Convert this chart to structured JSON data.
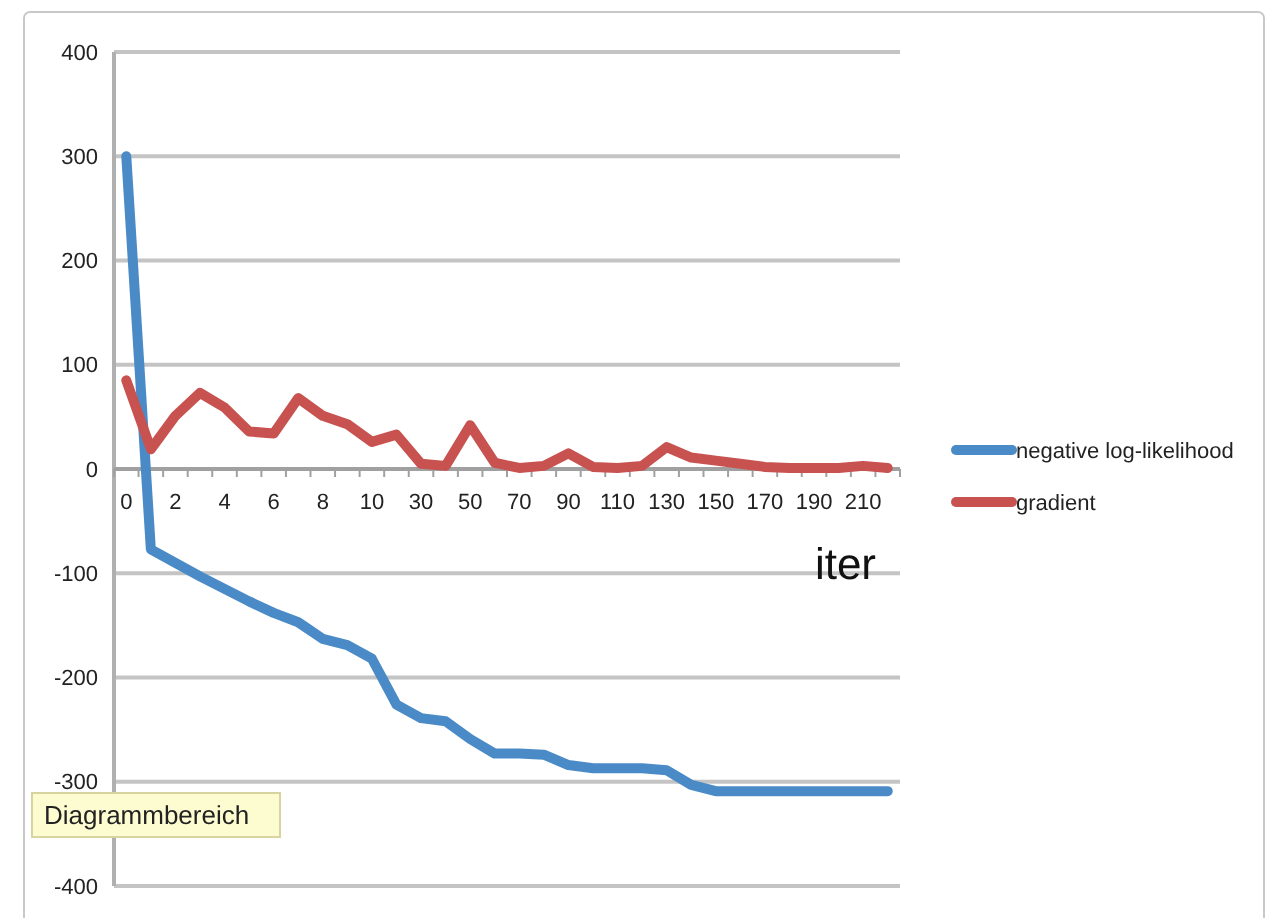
{
  "chart_data": {
    "type": "line",
    "xlabel": "iter",
    "categories": [
      "0",
      null,
      "2",
      null,
      "4",
      null,
      "6",
      null,
      "8",
      null,
      "10",
      null,
      "30",
      null,
      "50",
      null,
      "70",
      null,
      "90",
      null,
      "110",
      null,
      "130",
      null,
      "150",
      null,
      "170",
      null,
      "190",
      null,
      "210",
      null
    ],
    "series": [
      {
        "name": "negative log-likelihood",
        "color": "#4a8bc7",
        "values": [
          300,
          -77,
          -90,
          -103,
          -115,
          -127,
          -138,
          -147,
          -163,
          -169,
          -182,
          -226,
          -239,
          -242,
          -259,
          -273,
          -273,
          -274,
          -284,
          -287,
          -287,
          -287,
          -289,
          -303,
          -309,
          -309,
          -309,
          -309,
          -309,
          -309,
          -309,
          -309
        ]
      },
      {
        "name": "gradient",
        "color": "#c85250",
        "values": [
          85,
          19,
          51,
          73,
          59,
          36,
          34,
          68,
          51,
          43,
          26,
          33,
          5,
          3,
          42,
          6,
          1,
          3,
          15,
          2,
          1,
          3,
          21,
          11,
          8,
          5,
          2,
          1,
          1,
          1,
          3,
          1
        ]
      }
    ],
    "ylim": [
      -400,
      400
    ],
    "yticks": [
      -400,
      -300,
      -200,
      -100,
      0,
      100,
      200,
      300,
      400
    ],
    "grid": "y",
    "legend": "right",
    "marker": "none",
    "line_style": "solid",
    "annotations": [
      "Diagrammbereich"
    ]
  }
}
